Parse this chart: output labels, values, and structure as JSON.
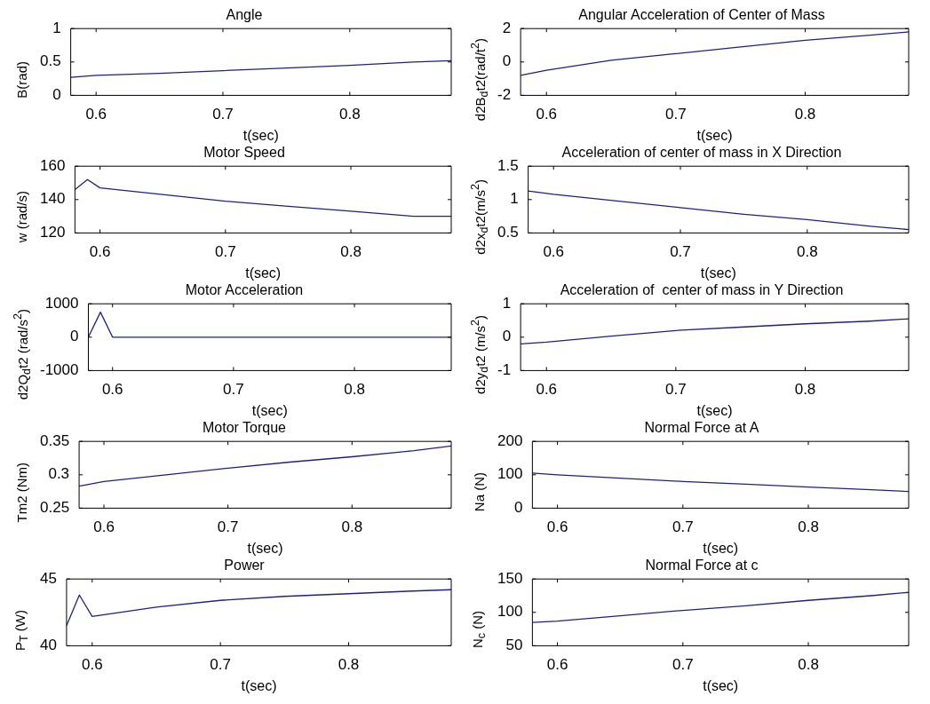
{
  "chart_data": [
    {
      "type": "line",
      "title": "Angle",
      "xlabel": "t(sec)",
      "ylabel": "B(rad)",
      "x": [
        0.58,
        0.6,
        0.65,
        0.7,
        0.75,
        0.8,
        0.85,
        0.88
      ],
      "values": [
        0.27,
        0.3,
        0.33,
        0.37,
        0.41,
        0.45,
        0.5,
        0.52
      ],
      "color": "#202080",
      "xlim": [
        0.58,
        0.88
      ],
      "xticks": [
        0.6,
        0.7,
        0.8
      ],
      "ylim": [
        0,
        1
      ],
      "yticks": [
        0,
        0.5,
        1
      ]
    },
    {
      "type": "line",
      "title": "Angular Acceleration of Center of Mass",
      "xlabel": "t(sec)",
      "ylabel": "d2B$_{d}$t2(rad/t$^{2}$)",
      "x": [
        0.58,
        0.6,
        0.65,
        0.7,
        0.75,
        0.8,
        0.85,
        0.88
      ],
      "values": [
        -0.8,
        -0.5,
        0.1,
        0.5,
        0.9,
        1.3,
        1.6,
        1.8
      ],
      "color": "#202080",
      "xlim": [
        0.58,
        0.88
      ],
      "xticks": [
        0.6,
        0.7,
        0.8
      ],
      "ylim": [
        -2,
        2
      ],
      "yticks": [
        -2,
        0,
        2
      ]
    },
    {
      "type": "line",
      "title": "Motor Speed",
      "xlabel": "t(sec)",
      "ylabel": "w (rad/s)",
      "x": [
        0.58,
        0.59,
        0.6,
        0.65,
        0.7,
        0.75,
        0.8,
        0.85,
        0.88
      ],
      "values": [
        146,
        152,
        147,
        143,
        139,
        136,
        133,
        130,
        130
      ],
      "color": "#202080",
      "xlim": [
        0.58,
        0.88
      ],
      "xticks": [
        0.6,
        0.7,
        0.8
      ],
      "ylim": [
        120,
        160
      ],
      "yticks": [
        120,
        140,
        160
      ]
    },
    {
      "type": "line",
      "title": "Acceleration of center of mass in X Direction",
      "xlabel": "t(sec)",
      "ylabel": "d2x$_{d}$t2(m/s$^{2}$)",
      "x": [
        0.58,
        0.6,
        0.65,
        0.7,
        0.75,
        0.8,
        0.85,
        0.88
      ],
      "values": [
        1.13,
        1.08,
        0.98,
        0.88,
        0.78,
        0.7,
        0.6,
        0.55
      ],
      "color": "#202080",
      "xlim": [
        0.58,
        0.88
      ],
      "xticks": [
        0.6,
        0.7,
        0.8
      ],
      "ylim": [
        0.5,
        1.5
      ],
      "yticks": [
        0.5,
        1,
        1.5
      ]
    },
    {
      "type": "line",
      "title": "Motor Acceleration",
      "xlabel": "t(sec)",
      "ylabel": "d2Q$_{d}$t2 (rad/s$^{2}$)",
      "x": [
        0.58,
        0.59,
        0.6,
        0.7,
        0.8,
        0.88
      ],
      "values": [
        0,
        750,
        0,
        0,
        0,
        0
      ],
      "color": "#202080",
      "xlim": [
        0.58,
        0.88
      ],
      "xticks": [
        0.6,
        0.7,
        0.8
      ],
      "ylim": [
        -1000,
        1000
      ],
      "yticks": [
        -1000,
        0,
        1000
      ]
    },
    {
      "type": "line",
      "title": "Acceleration of  center of mass in Y Direction",
      "xlabel": "t(sec)",
      "ylabel": "d2y$_{d}$t2 (m/s$^{2}$)",
      "x": [
        0.58,
        0.6,
        0.65,
        0.7,
        0.75,
        0.8,
        0.85,
        0.88
      ],
      "values": [
        -0.2,
        -0.15,
        0.03,
        0.2,
        0.3,
        0.4,
        0.48,
        0.55
      ],
      "color": "#202080",
      "xlim": [
        0.58,
        0.88
      ],
      "xticks": [
        0.6,
        0.7,
        0.8
      ],
      "ylim": [
        -1,
        1
      ],
      "yticks": [
        -1,
        0,
        1
      ]
    },
    {
      "type": "line",
      "title": "Motor Torque",
      "xlabel": "t(sec)",
      "ylabel": "Tm2 (Nm)",
      "x": [
        0.58,
        0.6,
        0.65,
        0.7,
        0.75,
        0.8,
        0.85,
        0.88
      ],
      "values": [
        0.283,
        0.29,
        0.3,
        0.31,
        0.319,
        0.327,
        0.336,
        0.343
      ],
      "color": "#202080",
      "xlim": [
        0.58,
        0.88
      ],
      "xticks": [
        0.6,
        0.7,
        0.8
      ],
      "ylim": [
        0.25,
        0.35
      ],
      "yticks": [
        0.25,
        0.3,
        0.35
      ]
    },
    {
      "type": "line",
      "title": "Normal Force at A",
      "xlabel": "t(sec)",
      "ylabel": "Na (N)",
      "x": [
        0.58,
        0.6,
        0.65,
        0.7,
        0.75,
        0.8,
        0.85,
        0.88
      ],
      "values": [
        105,
        100,
        90,
        80,
        72,
        63,
        55,
        50
      ],
      "color": "#202080",
      "xlim": [
        0.58,
        0.88
      ],
      "xticks": [
        0.6,
        0.7,
        0.8
      ],
      "ylim": [
        0,
        200
      ],
      "yticks": [
        0,
        100,
        200
      ]
    },
    {
      "type": "line",
      "title": "Power",
      "xlabel": "t(sec)",
      "ylabel": "P$_{T}$ (W)",
      "x": [
        0.58,
        0.59,
        0.6,
        0.65,
        0.7,
        0.75,
        0.8,
        0.85,
        0.88
      ],
      "values": [
        41.5,
        43.8,
        42.2,
        42.9,
        43.4,
        43.7,
        43.9,
        44.1,
        44.2
      ],
      "color": "#202080",
      "xlim": [
        0.58,
        0.88
      ],
      "xticks": [
        0.6,
        0.7,
        0.8
      ],
      "ylim": [
        40,
        45
      ],
      "yticks": [
        40,
        45
      ]
    },
    {
      "type": "line",
      "title": "Normal Force at c",
      "xlabel": "t(sec)",
      "ylabel": "N$_{c}$ (N)",
      "x": [
        0.58,
        0.6,
        0.65,
        0.7,
        0.75,
        0.8,
        0.85,
        0.88
      ],
      "values": [
        85,
        87,
        95,
        103,
        110,
        118,
        125,
        130
      ],
      "color": "#202080",
      "xlim": [
        0.58,
        0.88
      ],
      "xticks": [
        0.6,
        0.7,
        0.8
      ],
      "ylim": [
        50,
        150
      ],
      "yticks": [
        50,
        100,
        150
      ]
    }
  ]
}
